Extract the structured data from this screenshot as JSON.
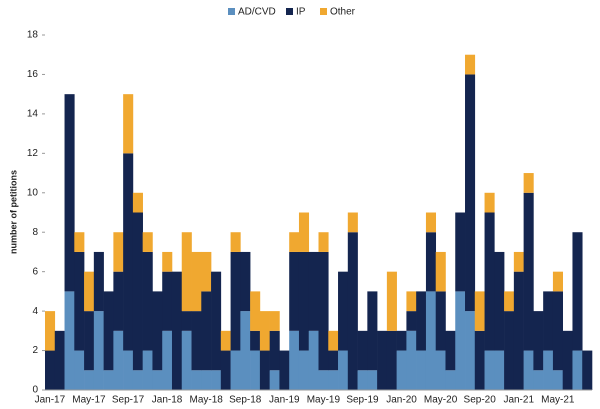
{
  "chart_data": {
    "type": "stacked-bar",
    "ylabel": "number of petitions",
    "categories": [
      "Jan-17",
      null,
      null,
      null,
      "May-17",
      null,
      null,
      null,
      "Sep-17",
      null,
      null,
      null,
      "Jan-18",
      null,
      null,
      null,
      "May-18",
      null,
      null,
      null,
      "Sep-18",
      null,
      null,
      null,
      "Jan-19",
      null,
      null,
      null,
      "May-19",
      null,
      null,
      null,
      "Sep-19",
      null,
      null,
      null,
      "Jan-20",
      null,
      null,
      null,
      "May-20",
      null,
      null,
      null,
      "Sep-20",
      null,
      null,
      null,
      "Jan-21",
      null,
      null,
      null,
      "May-21",
      null,
      null,
      null
    ],
    "series": [
      {
        "name": "AD/CVD",
        "color": "#5b8fbf",
        "values": [
          0,
          0,
          5,
          2,
          1,
          4,
          1,
          3,
          2,
          1,
          2,
          1,
          3,
          0,
          3,
          1,
          1,
          1,
          0,
          2,
          4,
          2,
          0,
          1,
          0,
          3,
          2,
          3,
          1,
          1,
          2,
          0,
          1,
          1,
          0,
          0,
          2,
          3,
          2,
          5,
          2,
          1,
          5,
          4,
          0,
          2,
          2,
          0,
          0,
          2,
          1,
          2,
          1,
          0,
          2,
          0
        ]
      },
      {
        "name": "IP",
        "color": "#14254f",
        "values": [
          2,
          3,
          10,
          5,
          3,
          3,
          4,
          3,
          10,
          8,
          5,
          4,
          3,
          6,
          1,
          3,
          4,
          5,
          2,
          5,
          3,
          1,
          2,
          2,
          2,
          4,
          5,
          4,
          6,
          1,
          4,
          8,
          2,
          4,
          3,
          3,
          1,
          1,
          3,
          3,
          3,
          2,
          4,
          12,
          3,
          7,
          5,
          4,
          6,
          8,
          3,
          3,
          4,
          3,
          6,
          2
        ]
      },
      {
        "name": "Other",
        "color": "#f0a830",
        "values": [
          2,
          0,
          0,
          1,
          2,
          0,
          0,
          2,
          3,
          1,
          1,
          0,
          1,
          0,
          4,
          3,
          2,
          0,
          1,
          1,
          0,
          2,
          2,
          1,
          0,
          1,
          2,
          0,
          1,
          1,
          0,
          1,
          0,
          0,
          0,
          3,
          0,
          1,
          0,
          1,
          2,
          0,
          0,
          1,
          2,
          1,
          0,
          1,
          1,
          1,
          0,
          0,
          1,
          0,
          0,
          0
        ]
      }
    ],
    "ylim": [
      0,
      18
    ],
    "yticks": [
      0,
      2,
      4,
      6,
      8,
      10,
      12,
      14,
      16,
      18
    ],
    "legend": "top"
  }
}
